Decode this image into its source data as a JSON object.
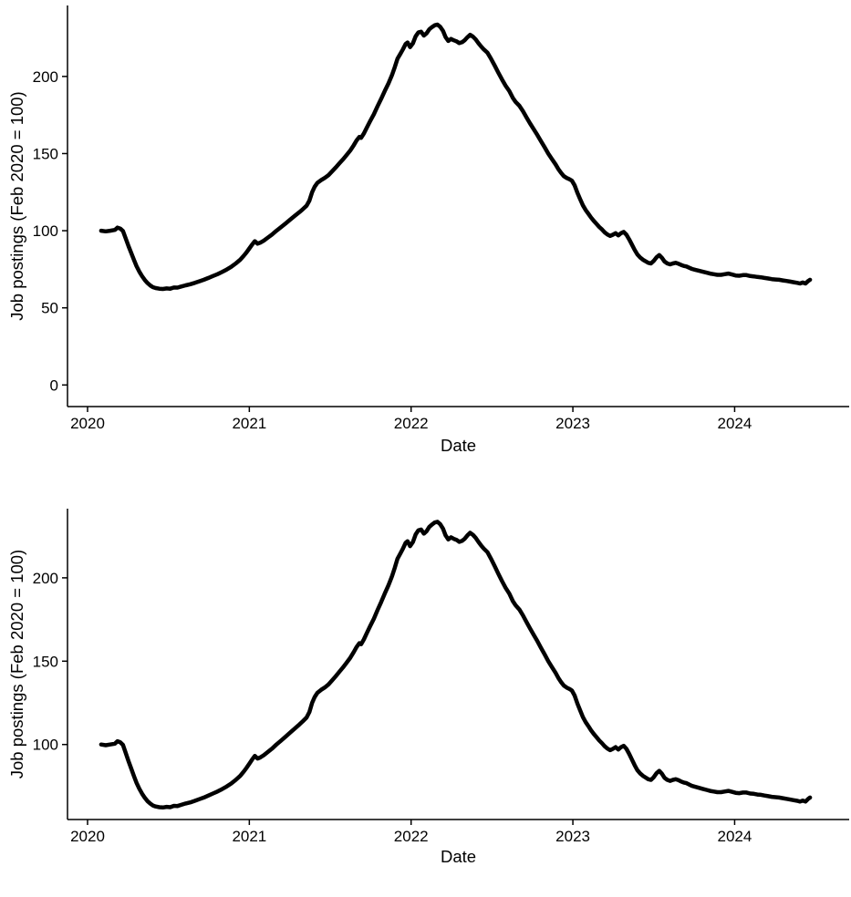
{
  "page": {
    "background": "#ffffff",
    "text_color": "#000000"
  },
  "series_shared": {
    "name": "job-postings-index",
    "x_unit": "decimal_year",
    "x": [
      2020.084,
      2020.112,
      2020.14,
      2020.169,
      2020.185,
      2020.202,
      2020.219,
      2020.236,
      2020.253,
      2020.27,
      2020.287,
      2020.303,
      2020.32,
      2020.337,
      2020.354,
      2020.371,
      2020.388,
      2020.404,
      2020.421,
      2020.444,
      2020.466,
      2020.489,
      2020.511,
      2020.534,
      2020.556,
      2020.579,
      2020.607,
      2020.635,
      2020.663,
      2020.691,
      2020.719,
      2020.747,
      2020.775,
      2020.803,
      2020.831,
      2020.86,
      2020.888,
      2020.916,
      2020.944,
      2020.966,
      2020.983,
      2021.0,
      2021.017,
      2021.034,
      2021.051,
      2021.067,
      2021.09,
      2021.112,
      2021.14,
      2021.168,
      2021.197,
      2021.225,
      2021.253,
      2021.281,
      2021.309,
      2021.331,
      2021.354,
      2021.371,
      2021.388,
      2021.404,
      2021.421,
      2021.444,
      2021.466,
      2021.489,
      2021.511,
      2021.534,
      2021.556,
      2021.579,
      2021.601,
      2021.624,
      2021.646,
      2021.663,
      2021.68,
      2021.691,
      2021.708,
      2021.725,
      2021.747,
      2021.77,
      2021.792,
      2021.815,
      2021.837,
      2021.86,
      2021.882,
      2021.899,
      2021.916,
      2021.933,
      2021.949,
      2021.966,
      2021.978,
      2021.994,
      2022.011,
      2022.028,
      2022.045,
      2022.062,
      2022.079,
      2022.096,
      2022.112,
      2022.129,
      2022.146,
      2022.163,
      2022.18,
      2022.197,
      2022.213,
      2022.23,
      2022.247,
      2022.264,
      2022.281,
      2022.298,
      2022.315,
      2022.331,
      2022.348,
      2022.365,
      2022.382,
      2022.399,
      2022.416,
      2022.433,
      2022.449,
      2022.472,
      2022.494,
      2022.517,
      2022.539,
      2022.562,
      2022.584,
      2022.607,
      2022.629,
      2022.646,
      2022.669,
      2022.691,
      2022.713,
      2022.736,
      2022.758,
      2022.781,
      2022.803,
      2022.826,
      2022.848,
      2022.871,
      2022.893,
      2022.91,
      2022.927,
      2022.944,
      2022.961,
      2022.978,
      2022.994,
      2023.011,
      2023.028,
      2023.045,
      2023.062,
      2023.079,
      2023.096,
      2023.112,
      2023.129,
      2023.146,
      2023.163,
      2023.18,
      2023.196,
      2023.213,
      2023.23,
      2023.247,
      2023.264,
      2023.281,
      2023.298,
      2023.314,
      2023.331,
      2023.348,
      2023.365,
      2023.382,
      2023.399,
      2023.416,
      2023.433,
      2023.449,
      2023.466,
      2023.483,
      2023.5,
      2023.517,
      2023.534,
      2023.551,
      2023.567,
      2023.584,
      2023.601,
      2023.618,
      2023.635,
      2023.652,
      2023.669,
      2023.685,
      2023.702,
      2023.719,
      2023.736,
      2023.758,
      2023.781,
      2023.803,
      2023.826,
      2023.848,
      2023.871,
      2023.893,
      2023.916,
      2023.938,
      2023.961,
      2023.983,
      2024.006,
      2024.028,
      2024.051,
      2024.073,
      2024.096,
      2024.118,
      2024.14,
      2024.163,
      2024.185,
      2024.208,
      2024.23,
      2024.253,
      2024.275,
      2024.298,
      2024.32,
      2024.343,
      2024.365,
      2024.388,
      2024.404,
      2024.421,
      2024.438,
      2024.455,
      2024.466
    ],
    "y": [
      100,
      99.6,
      100,
      100.5,
      102,
      101.4,
      99.8,
      95,
      90,
      85.5,
      81,
      77,
      73.5,
      70.5,
      68,
      66,
      64.5,
      63.4,
      62.8,
      62.4,
      62.2,
      62.6,
      62.4,
      63.2,
      63.1,
      63.8,
      64.6,
      65.3,
      66.2,
      67.2,
      68.2,
      69.4,
      70.6,
      71.8,
      73.2,
      74.8,
      76.6,
      78.8,
      81.2,
      83.8,
      86,
      88.5,
      91,
      93.2,
      91.6,
      92.2,
      93.6,
      95.3,
      97.5,
      100,
      102.4,
      104.8,
      107.2,
      109.6,
      112,
      114,
      116.2,
      119.5,
      125,
      128.5,
      131,
      132.8,
      134.2,
      136,
      138.4,
      141,
      143.6,
      146.2,
      149,
      152,
      155.5,
      158.5,
      160.8,
      160.2,
      163,
      166.5,
      171,
      175.5,
      180.5,
      185.5,
      190.5,
      195.5,
      201,
      206,
      211.5,
      214.5,
      217.5,
      221,
      222,
      219,
      221.5,
      226,
      228.5,
      229,
      226.5,
      228,
      230.5,
      232,
      233.2,
      233.6,
      232.2,
      229.5,
      225.5,
      223,
      224.3,
      223.4,
      222.8,
      221.6,
      222.2,
      223.4,
      225.4,
      227,
      225.8,
      224,
      221.6,
      219.4,
      217.6,
      215.4,
      211.5,
      207,
      202.5,
      198,
      194,
      190.5,
      186,
      183.5,
      181,
      177.5,
      173.5,
      169.5,
      165.8,
      162,
      158,
      154,
      150,
      146.4,
      143,
      140,
      137.5,
      135.4,
      134.2,
      133.4,
      132.4,
      129.4,
      124.6,
      120.4,
      116.4,
      113.4,
      111,
      108.6,
      106.4,
      104.4,
      102.4,
      100.8,
      99,
      97.6,
      96.6,
      97.4,
      98.4,
      97,
      98.4,
      99.2,
      97.4,
      94.4,
      91,
      87.6,
      84.6,
      82.6,
      81.2,
      80.2,
      79.2,
      78.8,
      80.4,
      82.8,
      84.2,
      82.4,
      80,
      78.8,
      78.2,
      78.8,
      79.2,
      78.6,
      77.8,
      77.2,
      76.8,
      76,
      75.2,
      74.6,
      74,
      73.4,
      72.8,
      72.2,
      71.8,
      71.4,
      71.4,
      71.8,
      72.2,
      71.6,
      71,
      70.8,
      71.2,
      71.2,
      70.6,
      70.4,
      70,
      69.8,
      69.4,
      69,
      68.6,
      68.4,
      68.2,
      67.8,
      67.4,
      67,
      66.6,
      66.2,
      65.8,
      66.4,
      65.8,
      67.4,
      68.2
    ]
  },
  "chart_data": [
    {
      "type": "line",
      "position": "top",
      "title": "",
      "xlabel": "Date",
      "ylabel": "Job postings (Feb 2020 = 100)",
      "xticks": [
        2020,
        2021,
        2022,
        2023,
        2024
      ],
      "xtick_labels": [
        "2020",
        "2021",
        "2022",
        "2023",
        "2024"
      ],
      "yticks": [
        0,
        50,
        100,
        150,
        200
      ],
      "ytick_labels": [
        "0",
        "50",
        "100",
        "150",
        "200"
      ],
      "xlim": [
        2019.876,
        2024.708
      ],
      "ylim": [
        -14,
        246
      ],
      "grid": false,
      "legend": false,
      "line_color": "#000000",
      "line_width": 4.5,
      "series_ref": "job-postings-index",
      "note": "y-axis includes 0"
    },
    {
      "type": "line",
      "position": "bottom",
      "title": "",
      "xlabel": "Date",
      "ylabel": "Job postings (Feb 2020 = 100)",
      "xticks": [
        2020,
        2021,
        2022,
        2023,
        2024
      ],
      "xtick_labels": [
        "2020",
        "2021",
        "2022",
        "2023",
        "2024"
      ],
      "yticks": [
        100,
        150,
        200
      ],
      "ytick_labels": [
        "100",
        "150",
        "200"
      ],
      "xlim": [
        2019.876,
        2024.708
      ],
      "ylim": [
        55,
        241.5
      ],
      "grid": false,
      "legend": false,
      "line_color": "#000000",
      "line_width": 4.5,
      "series_ref": "job-postings-index",
      "note": "same series as top chart; y-axis truncated (does not start at 0)"
    }
  ]
}
